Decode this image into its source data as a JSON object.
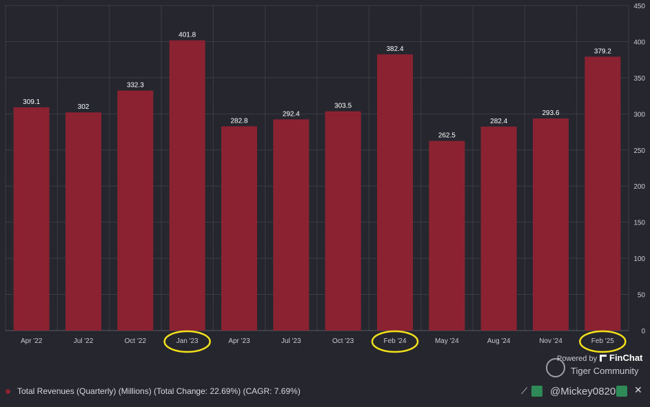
{
  "chart_data": {
    "type": "bar",
    "categories": [
      "Apr '22",
      "Jul '22",
      "Oct '22",
      "Jan '23",
      "Apr '23",
      "Jul '23",
      "Oct '23",
      "Feb '24",
      "May '24",
      "Aug '24",
      "Nov '24",
      "Feb '25"
    ],
    "series": [
      {
        "name": "Total Revenues (Quarterly) (Millions) (Total Change: 22.69%) (CAGR: 7.69%)",
        "values": [
          309.1,
          302,
          332.3,
          401.8,
          282.8,
          292.4,
          303.5,
          382.4,
          262.5,
          282.4,
          293.6,
          379.2
        ],
        "labels": [
          "309.1",
          "302",
          "332.3",
          "401.8",
          "282.8",
          "292.4",
          "303.5",
          "382.4",
          "262.5",
          "282.4",
          "293.6",
          "379.2"
        ]
      }
    ],
    "ylim": [
      0,
      450
    ],
    "yticks": [
      0,
      50,
      100,
      150,
      200,
      250,
      300,
      350,
      400,
      450
    ],
    "y_axis_side": "right",
    "grid": true,
    "legend_position": "bottom-left",
    "highlighted_categories": [
      "Jan '23",
      "Feb '24",
      "Feb '25"
    ],
    "colors": {
      "bar": "#8b2232",
      "background": "#26262e",
      "highlight": "#f5e11a"
    }
  },
  "legend": {
    "label": "Total Revenues (Quarterly) (Millions) (Total Change: 22.69%) (CAGR: 7.69%)"
  },
  "brand": {
    "powered_by": "Powered by",
    "finchat": "FinChat",
    "tiger": "Tiger Community"
  },
  "watermark": "@Mickey082024",
  "toolbar": {
    "icons": [
      "trend-icon",
      "bar-chart-icon",
      "dashboard-icon",
      "close-icon"
    ]
  }
}
